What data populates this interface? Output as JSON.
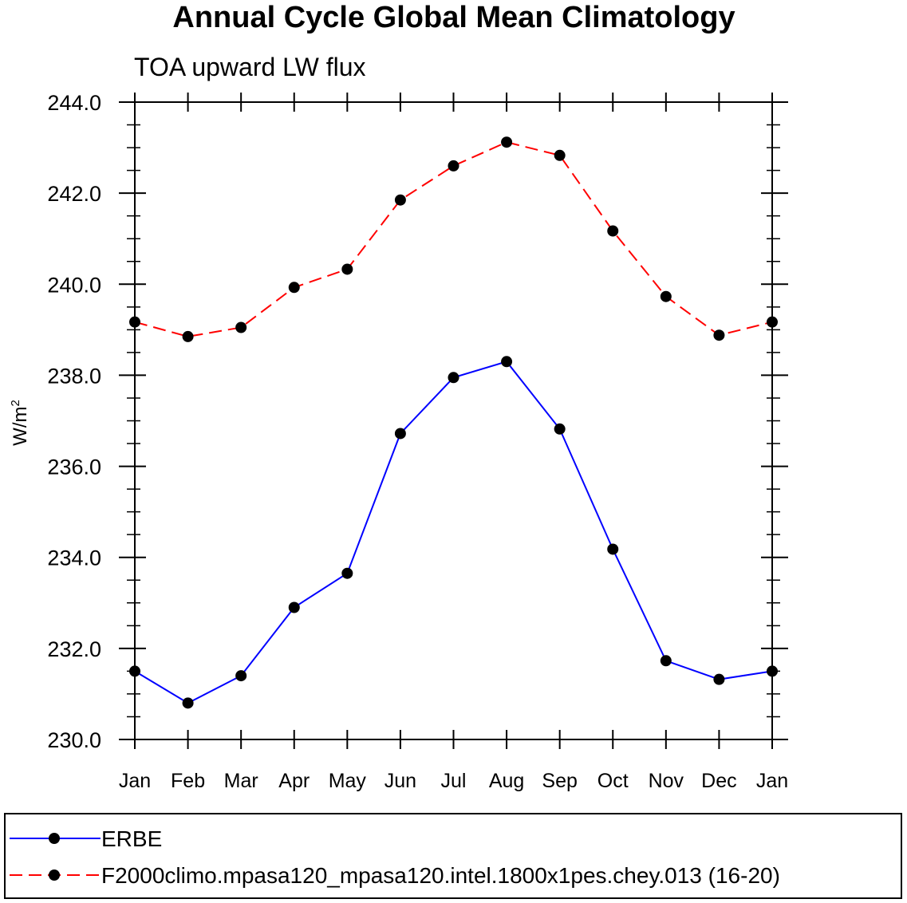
{
  "chart_data": {
    "type": "line",
    "title": "Annual Cycle Global Mean Climatology",
    "subtitle": "TOA upward LW flux",
    "xlabel": "",
    "ylabel_base": "W/m",
    "ylabel_superscript": "2",
    "ylim": [
      230.0,
      244.0
    ],
    "y_ticks": [
      "230.0",
      "232.0",
      "234.0",
      "236.0",
      "238.0",
      "240.0",
      "242.0",
      "244.0"
    ],
    "categories": [
      "Jan",
      "Feb",
      "Mar",
      "Apr",
      "May",
      "Jun",
      "Jul",
      "Aug",
      "Sep",
      "Oct",
      "Nov",
      "Dec",
      "Jan"
    ],
    "grid": false,
    "legend_position": "bottom",
    "series": [
      {
        "name": "ERBE",
        "color": "#0000ff",
        "line_style": "solid",
        "marker": "filled-circle",
        "values": [
          231.5,
          230.8,
          231.4,
          232.9,
          233.65,
          236.72,
          237.95,
          238.3,
          236.82,
          234.18,
          231.73,
          231.32,
          231.5
        ]
      },
      {
        "name": "F2000climo.mpasa120_mpasa120.intel.1800x1pes.chey.013 (16-20)",
        "color": "#ff0000",
        "line_style": "dashed",
        "marker": "filled-circle",
        "values": [
          239.17,
          238.85,
          239.05,
          239.93,
          240.33,
          241.85,
          242.6,
          243.12,
          242.83,
          241.17,
          239.73,
          238.88,
          239.17
        ]
      }
    ]
  }
}
